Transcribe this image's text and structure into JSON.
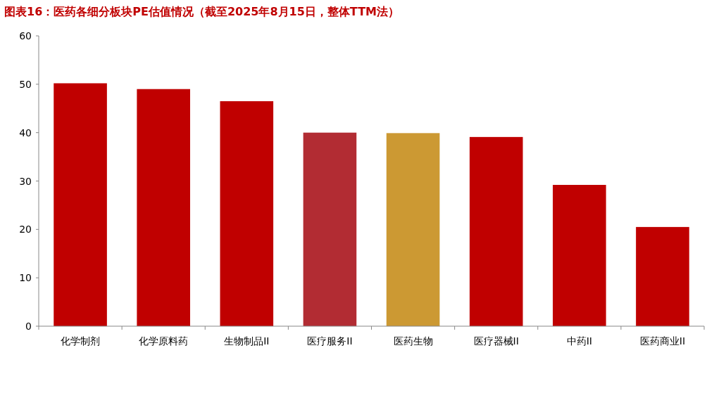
{
  "chart_data": {
    "type": "bar",
    "title": "图表16：医药各细分板块PE估值情况（截至2025年8月15日，整体TTM法）",
    "categories": [
      "化学制剂",
      "化学原料药",
      "生物制品II",
      "医疗服务II",
      "医药生物",
      "医疗器械II",
      "中药II",
      "医药商业II"
    ],
    "values": [
      50.2,
      49.0,
      46.5,
      40.0,
      39.9,
      39.1,
      29.2,
      20.5
    ],
    "colors": [
      "#c00000",
      "#c00000",
      "#c00000",
      "#b22c33",
      "#cc9933",
      "#c00000",
      "#c00000",
      "#c00000"
    ],
    "ylim": [
      0,
      60
    ],
    "yticks": [
      0,
      10,
      20,
      30,
      40,
      50,
      60
    ],
    "grid": false
  }
}
